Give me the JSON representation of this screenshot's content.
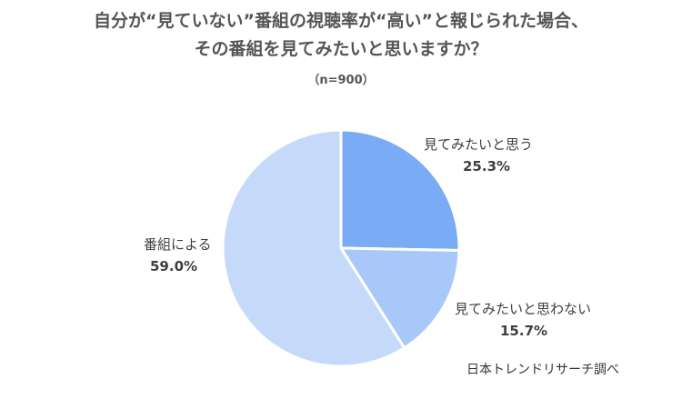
{
  "header": {
    "title_line1": "自分が“見ていない”番組の視聴率が“高い”と報じられた場合、",
    "title_line2": "その番組を見てみたいと思いますか？",
    "sample": "（n=900）"
  },
  "source": "日本トレンドリサーチ調べ",
  "chart_data": {
    "type": "pie",
    "title": "自分が“見ていない”番組の視聴率が“高い”と報じられた場合、その番組を見てみたいと思いますか？",
    "subtitle": "（n=900）",
    "slices": [
      {
        "label": "見てみたいと思う",
        "value": 25.3,
        "value_label": "25.3%",
        "color": "#7aabf5"
      },
      {
        "label": "見てみたいと思わない",
        "value": 15.7,
        "value_label": "15.7%",
        "color": "#a7c8f8"
      },
      {
        "label": "番組による",
        "value": 59.0,
        "value_label": "59.0%",
        "color": "#c5dafb"
      }
    ],
    "start_angle": "12 o'clock",
    "direction": "clockwise",
    "legend": "none"
  }
}
